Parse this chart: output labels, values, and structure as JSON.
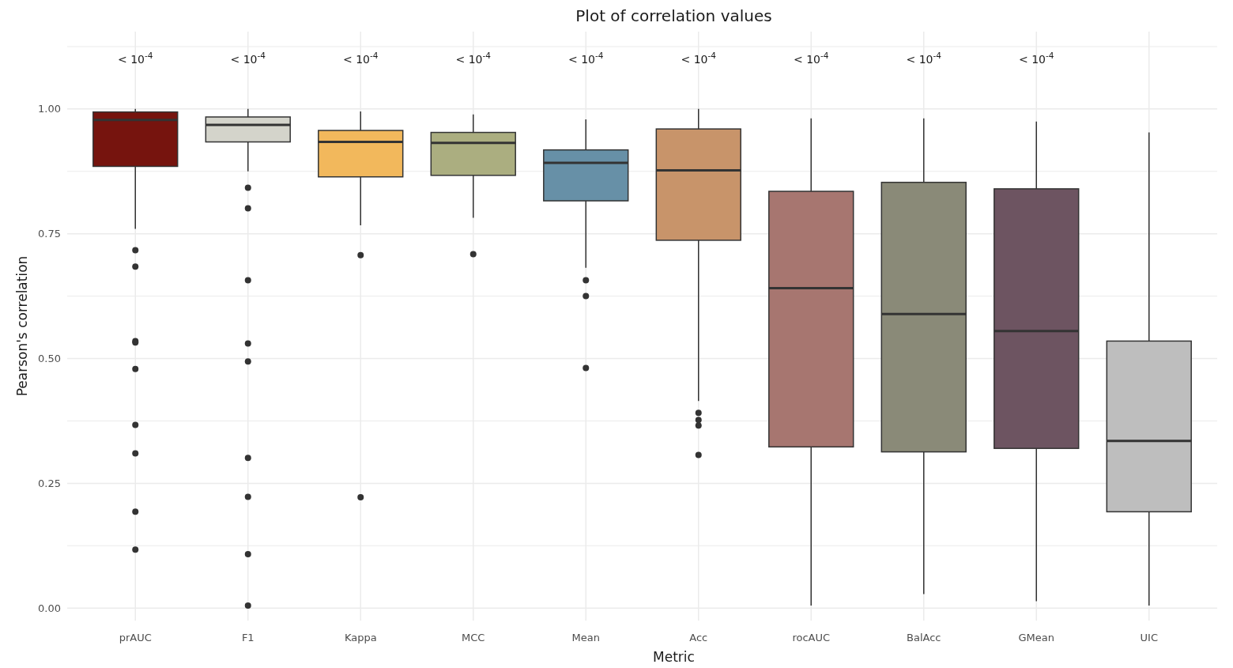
{
  "chart_data": {
    "type": "box",
    "title": "Plot of correlation values",
    "xlabel": "Metric",
    "ylabel": "Pearson's correlation",
    "categories": [
      "prAUC",
      "F1",
      "Kappa",
      "MCC",
      "Mean",
      "Acc",
      "rocAUC",
      "BalAcc",
      "GMean",
      "UIC"
    ],
    "colors": [
      "#76140e",
      "#d4d4cb",
      "#f2b85c",
      "#abae80",
      "#6790a7",
      "#c8946a",
      "#a77670",
      "#8a8a78",
      "#6d5461",
      "#bebebe"
    ],
    "boxes": [
      {
        "low": 0.76,
        "q1": 0.885,
        "median": 0.978,
        "q3": 0.994,
        "high": 1.0,
        "outliers": [
          0.717,
          0.684,
          0.535,
          0.532,
          0.479,
          0.367,
          0.31,
          0.193,
          0.117
        ]
      },
      {
        "low": 0.875,
        "q1": 0.934,
        "median": 0.968,
        "q3": 0.984,
        "high": 1.0,
        "outliers": [
          0.842,
          0.801,
          0.657,
          0.53,
          0.494,
          0.301,
          0.223,
          0.108,
          0.005
        ]
      },
      {
        "low": 0.767,
        "q1": 0.864,
        "median": 0.934,
        "q3": 0.957,
        "high": 0.995,
        "outliers": [
          0.707,
          0.222
        ]
      },
      {
        "low": 0.782,
        "q1": 0.867,
        "median": 0.932,
        "q3": 0.953,
        "high": 0.989,
        "outliers": [
          0.709
        ]
      },
      {
        "low": 0.682,
        "q1": 0.816,
        "median": 0.892,
        "q3": 0.918,
        "high": 0.979,
        "outliers": [
          0.657,
          0.625,
          0.481
        ]
      },
      {
        "low": 0.415,
        "q1": 0.737,
        "median": 0.877,
        "q3": 0.96,
        "high": 1.0,
        "outliers": [
          0.391,
          0.377,
          0.366,
          0.307
        ]
      },
      {
        "low": 0.005,
        "q1": 0.323,
        "median": 0.641,
        "q3": 0.835,
        "high": 0.981
      },
      {
        "low": 0.028,
        "q1": 0.313,
        "median": 0.589,
        "q3": 0.853,
        "high": 0.981
      },
      {
        "low": 0.014,
        "q1": 0.32,
        "median": 0.555,
        "q3": 0.84,
        "high": 0.975
      },
      {
        "low": 0.005,
        "q1": 0.193,
        "median": 0.335,
        "q3": 0.535,
        "high": 0.953
      }
    ],
    "ylim": [
      -0.025,
      1.155
    ],
    "yticks": [
      {
        "value": 0.0,
        "label": "0.00"
      },
      {
        "value": 0.125,
        "label": null
      },
      {
        "value": 0.25,
        "label": "0.25"
      },
      {
        "value": 0.375,
        "label": null
      },
      {
        "value": 0.5,
        "label": "0.50"
      },
      {
        "value": 0.625,
        "label": null
      },
      {
        "value": 0.75,
        "label": "0.75"
      },
      {
        "value": 0.875,
        "label": null
      },
      {
        "value": 1.0,
        "label": "1.00"
      },
      {
        "value": 1.125,
        "label": null
      }
    ],
    "grid": true,
    "annotations": [
      "< 10$^{-4}$",
      "< 10$^{-4}$",
      "< 10$^{-4}$",
      "< 10$^{-4}$",
      "< 10$^{-4}$",
      "< 10$^{-4}$",
      "< 10$^{-4}$",
      "< 10$^{-4}$",
      "< 10$^{-4}$"
    ]
  }
}
